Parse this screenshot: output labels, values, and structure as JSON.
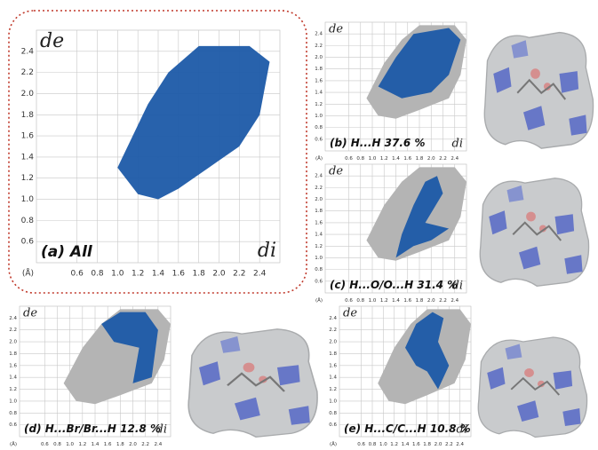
{
  "chart_data": [
    {
      "type": "fingerprint",
      "title": "(a) All",
      "xlabel": "di",
      "ylabel": "de",
      "xunit": "(Å)",
      "xlim": [
        0.2,
        2.6
      ],
      "ylim": [
        0.4,
        2.6
      ],
      "xticks": [
        0.6,
        0.8,
        {
          "value": 1,
          "label": "1.0"
        },
        1.2,
        1.4,
        1.6,
        1.8,
        {
          "value": 2,
          "label": "2.0"
        },
        2.2,
        2.4
      ],
      "yticks": [
        0.6,
        0.8,
        {
          "value": 1,
          "label": "1.0"
        },
        1.2,
        1.4,
        1.6,
        1.8,
        {
          "value": 2,
          "label": "2.0"
        },
        2.2,
        2.4
      ],
      "grid": true,
      "color": "#1c5aa8"
    },
    {
      "type": "fingerprint",
      "title": "(b) H...H 37.6 %",
      "xlabel": "di",
      "ylabel": "de",
      "xunit": "(Å)",
      "xlim": [
        0.2,
        2.6
      ],
      "ylim": [
        0.4,
        2.6
      ],
      "xticks": [
        0.6,
        0.8,
        {
          "value": 1,
          "label": "1.0"
        },
        1.2,
        1.4,
        1.6,
        1.8,
        {
          "value": 2,
          "label": "2.0"
        },
        2.2,
        2.4
      ],
      "yticks": [
        0.6,
        0.8,
        {
          "value": 1,
          "label": "1.0"
        },
        1.2,
        1.4,
        1.6,
        1.8,
        {
          "value": 2,
          "label": "2.0"
        },
        2.2,
        2.4
      ],
      "grid": true,
      "color": "#1c5aa8"
    },
    {
      "type": "fingerprint",
      "title": "(c) H...O/O...H 31.4 %",
      "xlabel": "di",
      "ylabel": "de",
      "xunit": "(Å)",
      "xlim": [
        0.2,
        2.6
      ],
      "ylim": [
        0.4,
        2.6
      ],
      "xticks": [
        0.6,
        0.8,
        {
          "value": 1,
          "label": "1.0"
        },
        1.2,
        1.4,
        1.6,
        1.8,
        {
          "value": 2,
          "label": "2.0"
        },
        2.2,
        2.4
      ],
      "yticks": [
        0.6,
        0.8,
        {
          "value": 1,
          "label": "1.0"
        },
        1.2,
        1.4,
        1.6,
        1.8,
        {
          "value": 2,
          "label": "2.0"
        },
        2.2,
        2.4
      ],
      "grid": true,
      "color": "#1c5aa8"
    },
    {
      "type": "fingerprint",
      "title": "(d) H...Br/Br...H 12.8 %",
      "xlabel": "di",
      "ylabel": "de",
      "xunit": "(Å)",
      "xlim": [
        0.2,
        2.6
      ],
      "ylim": [
        0.4,
        2.6
      ],
      "xticks": [
        0.6,
        0.8,
        {
          "value": 1,
          "label": "1.0"
        },
        1.2,
        1.4,
        1.6,
        1.8,
        {
          "value": 2,
          "label": "2.0"
        },
        2.2,
        2.4
      ],
      "yticks": [
        0.6,
        0.8,
        {
          "value": 1,
          "label": "1.0"
        },
        1.2,
        1.4,
        1.6,
        1.8,
        {
          "value": 2,
          "label": "2.0"
        },
        2.2,
        2.4
      ],
      "grid": true,
      "color": "#1c5aa8"
    },
    {
      "type": "fingerprint",
      "title": "(e) H...C/C...H 10.8 %",
      "xlabel": "di",
      "ylabel": "de",
      "xunit": "(Å)",
      "xlim": [
        0.2,
        2.6
      ],
      "ylim": [
        0.4,
        2.6
      ],
      "xticks": [
        0.6,
        0.8,
        {
          "value": 1,
          "label": "1.0"
        },
        1.2,
        1.4,
        1.6,
        1.8,
        {
          "value": 2,
          "label": "2.0"
        },
        2.2,
        2.4
      ],
      "yticks": [
        0.6,
        0.8,
        {
          "value": 1,
          "label": "1.0"
        },
        1.2,
        1.4,
        1.6,
        1.8,
        {
          "value": 2,
          "label": "2.0"
        },
        2.2,
        2.4
      ],
      "grid": true,
      "color": "#1c5aa8"
    }
  ]
}
